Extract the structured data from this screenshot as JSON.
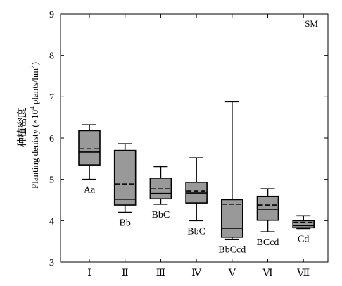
{
  "chart_data": {
    "type": "box",
    "panel_label": "SM",
    "ylabel_cn": "种植密度",
    "ylabel_en_pre": "Planting denisty (×10",
    "ylabel_en_sup": "4",
    "ylabel_en_mid": " plants/hm",
    "ylabel_en_sup2": "2",
    "ylabel_en_post": ")",
    "ylim": [
      3,
      9
    ],
    "yticks": [
      "3",
      "4",
      "5",
      "6",
      "7",
      "8",
      "9"
    ],
    "categories": [
      "Ⅰ",
      "Ⅱ",
      "Ⅲ",
      "Ⅳ",
      "Ⅴ",
      "Ⅵ",
      "Ⅶ"
    ],
    "boxes": [
      {
        "min": 5.0,
        "q1": 5.35,
        "median": 5.66,
        "mean": 5.74,
        "q3": 6.18,
        "max": 6.32,
        "letters": "Aa"
      },
      {
        "min": 4.2,
        "q1": 4.38,
        "median": 4.52,
        "mean": 4.89,
        "q3": 5.7,
        "max": 5.86,
        "letters": "Bb"
      },
      {
        "min": 4.4,
        "q1": 4.53,
        "median": 4.66,
        "mean": 4.77,
        "q3": 5.03,
        "max": 5.31,
        "letters": "BbC"
      },
      {
        "min": 4.0,
        "q1": 4.43,
        "median": 4.67,
        "mean": 4.72,
        "q3": 4.93,
        "max": 5.52,
        "letters": "BbC"
      },
      {
        "min": 3.55,
        "q1": 3.6,
        "median": 3.82,
        "mean": 4.4,
        "q3": 4.51,
        "max": 6.88,
        "letters": "BbCcd"
      },
      {
        "min": 3.73,
        "q1": 4.01,
        "median": 4.28,
        "mean": 4.38,
        "q3": 4.59,
        "max": 4.77,
        "letters": "BCcd"
      },
      {
        "min": 3.81,
        "q1": 3.83,
        "median": 3.88,
        "mean": 3.96,
        "q3": 4.0,
        "max": 4.12,
        "letters": "Cd"
      }
    ],
    "box_fill": "#999999"
  }
}
